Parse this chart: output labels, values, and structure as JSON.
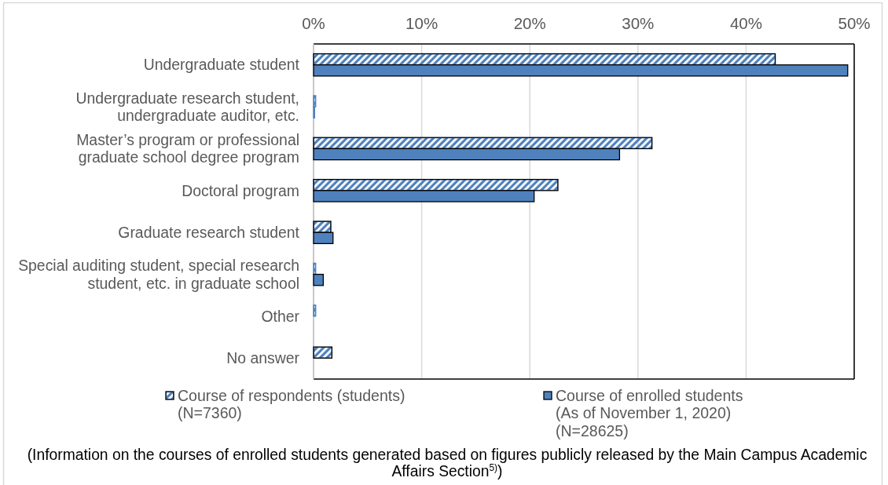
{
  "chart_data": {
    "type": "bar",
    "orientation": "horizontal",
    "categories": [
      "Undergraduate student",
      "Undergraduate research student,\nundergraduate auditor, etc.",
      "Master’s program or professional\ngraduate school degree program",
      "Doctoral program",
      "Graduate research student",
      "Special auditing student, special research\nstudent, etc. in graduate school",
      "Other",
      "No answer"
    ],
    "series": [
      {
        "name": "Course of respondents (students)\n(N=7360)",
        "color": "#4f81bd",
        "values": [
          42.7,
          0.2,
          31.3,
          22.6,
          1.6,
          0.2,
          0.2,
          1.7
        ]
      },
      {
        "name": "Course of enrolled students\n(As of November 1, 2020)\n(N=28625)",
        "color": "#4f81bd",
        "values": [
          49.4,
          0.1,
          28.3,
          20.4,
          1.8,
          0.9,
          null,
          null
        ]
      }
    ],
    "xlim": [
      0,
      50
    ],
    "xticks": [
      {
        "value": 0,
        "label": "0%"
      },
      {
        "value": 10,
        "label": "10%"
      },
      {
        "value": 20,
        "label": "20%"
      },
      {
        "value": 30,
        "label": "30%"
      },
      {
        "value": 40,
        "label": "40%"
      },
      {
        "value": 50,
        "label": "50%"
      }
    ],
    "grid": "x",
    "legend": "bottom",
    "annotations": [
      "(Information on the courses of enrolled students generated based on figures publicly released by the Main Campus Academic Affairs Section$^{5)}$)"
    ]
  }
}
